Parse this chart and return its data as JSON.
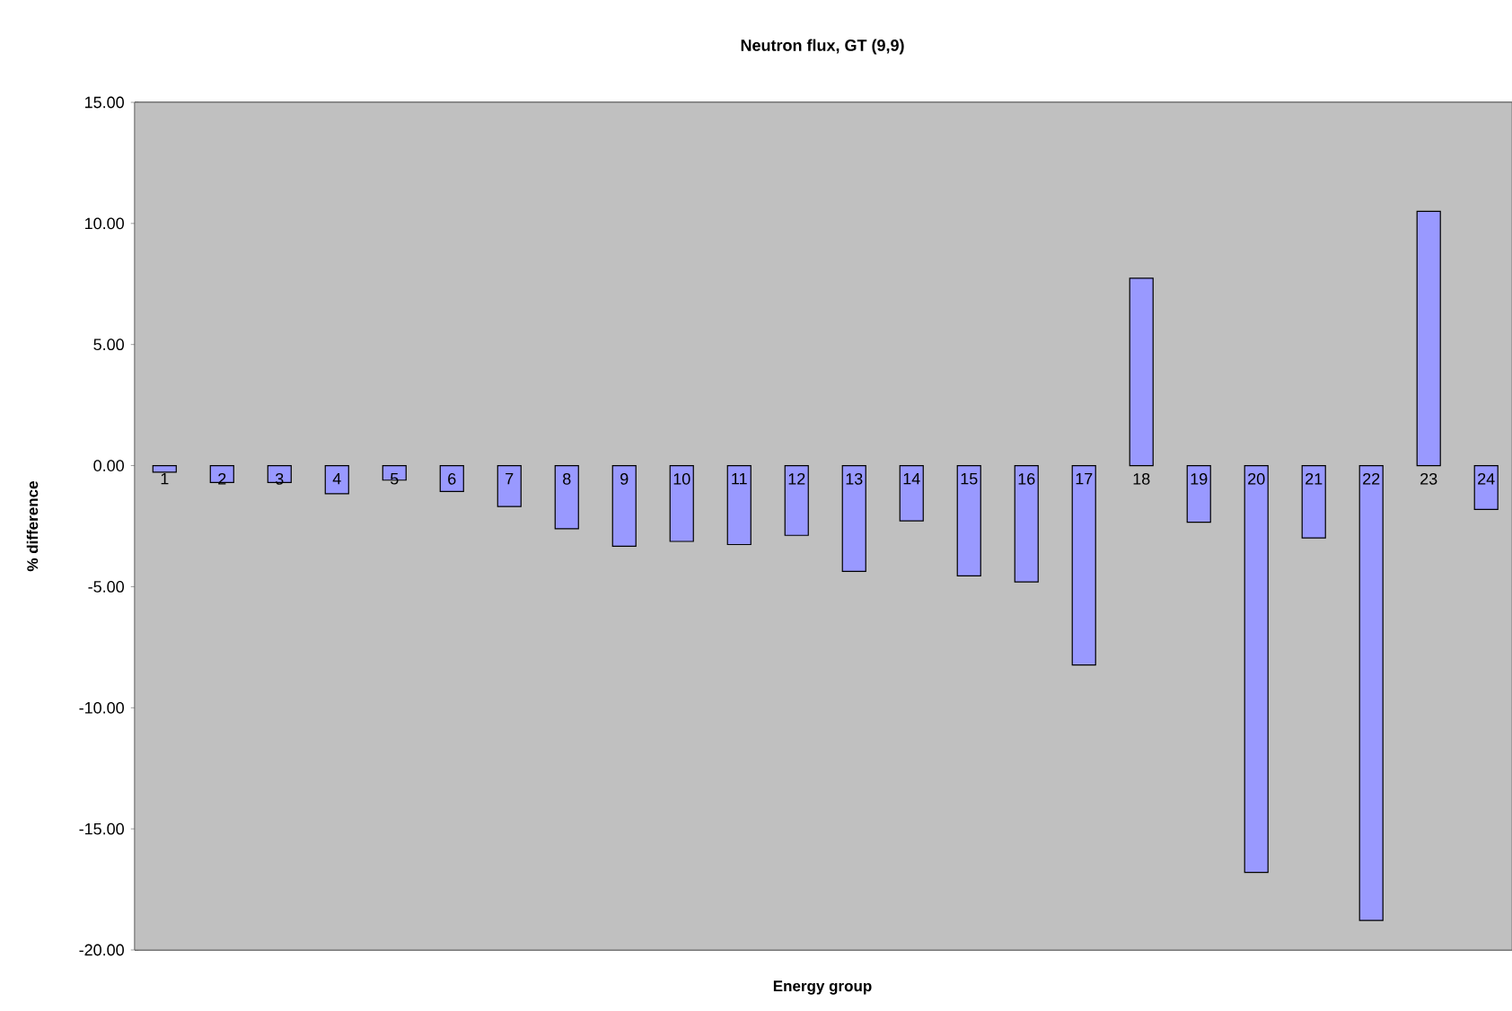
{
  "chart_data": {
    "type": "bar",
    "title": "Neutron flux, GT (9,9)",
    "xlabel": "Energy group",
    "ylabel": "% difference",
    "categories": [
      "1",
      "2",
      "3",
      "4",
      "5",
      "6",
      "7",
      "8",
      "9",
      "10",
      "11",
      "12",
      "13",
      "14",
      "15",
      "16",
      "17",
      "18",
      "19",
      "20",
      "21",
      "22",
      "23",
      "24"
    ],
    "values": [
      -0.27,
      -0.7,
      -0.7,
      -1.16,
      -0.6,
      -1.07,
      -1.69,
      -2.61,
      -3.33,
      -3.13,
      -3.26,
      -2.88,
      -4.37,
      -2.28,
      -4.55,
      -4.8,
      -8.23,
      7.74,
      -2.34,
      -16.8,
      -2.99,
      -18.78,
      10.5,
      -1.81
    ],
    "color": "#9999ff",
    "ylim": [
      -20,
      15
    ],
    "yticks": [
      {
        "value": -20,
        "label": "-20.00"
      },
      {
        "value": -15,
        "label": "-15.00"
      },
      {
        "value": -10,
        "label": "-10.00"
      },
      {
        "value": -5,
        "label": "-5.00"
      },
      {
        "value": 0,
        "label": "0.00"
      },
      {
        "value": 5,
        "label": "5.00"
      },
      {
        "value": 10,
        "label": "10.00"
      },
      {
        "value": 15,
        "label": "15.00"
      }
    ],
    "grid": "y"
  }
}
